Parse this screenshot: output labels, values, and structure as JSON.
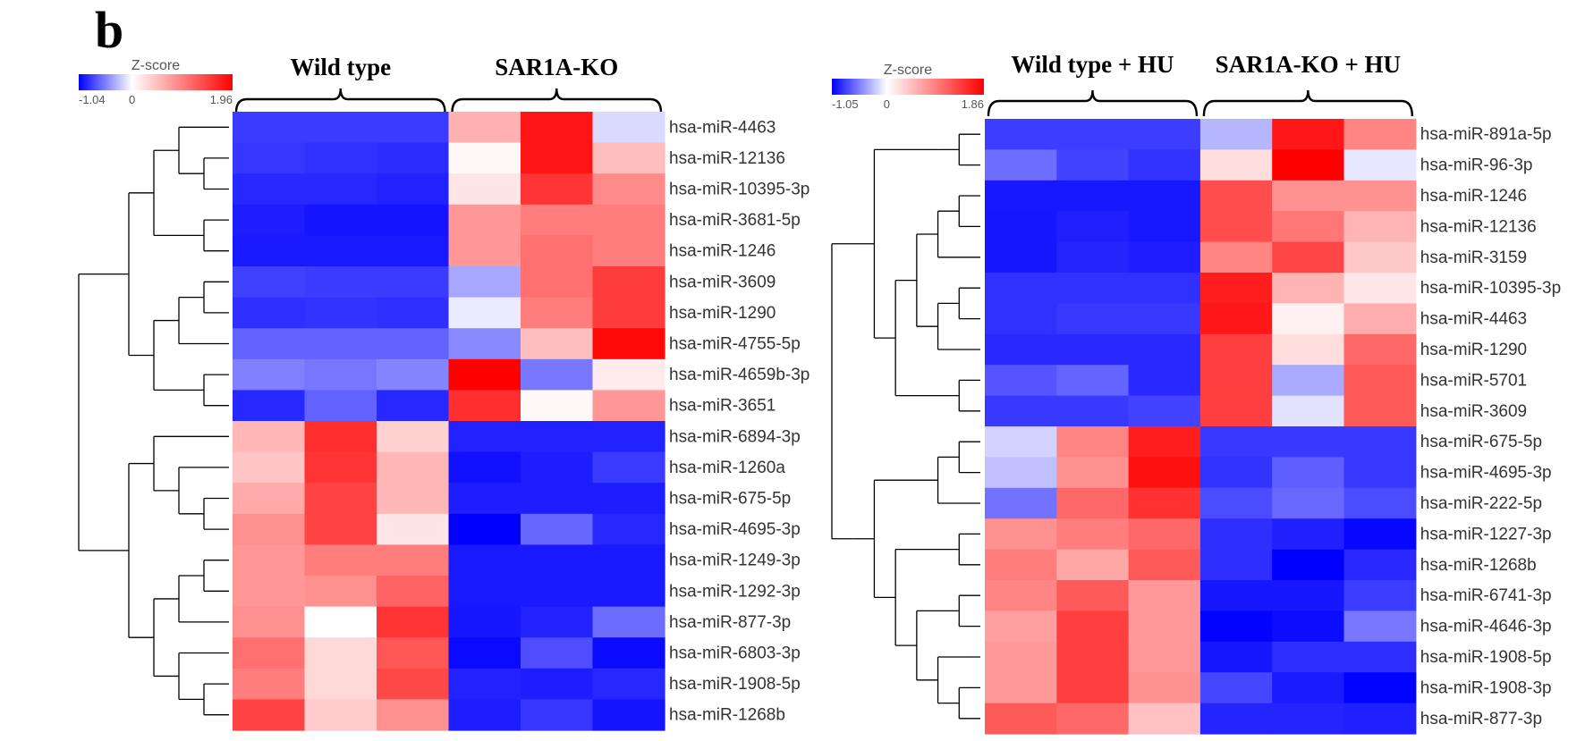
{
  "panel_label": "b",
  "chart_data": [
    {
      "type": "heatmap",
      "color_scale": {
        "title": "Z-score",
        "min": -1.04,
        "mid": 0,
        "max": 1.96,
        "min_label": "-1.04",
        "mid_label": "0",
        "max_label": "1.96",
        "low_color": "#0000ff",
        "mid_color": "#ffffff",
        "high_color": "#ff0000"
      },
      "groups": [
        "Wild type",
        "SAR1A-KO"
      ],
      "columns_per_group": 3,
      "rows": [
        "hsa-miR-4463",
        "hsa-miR-12136",
        "hsa-miR-10395-3p",
        "hsa-miR-3681-5p",
        "hsa-miR-1246",
        "hsa-miR-3609",
        "hsa-miR-1290",
        "hsa-miR-4755-5p",
        "hsa-miR-4659b-3p",
        "hsa-miR-3651",
        "hsa-miR-6894-3p",
        "hsa-miR-1260a",
        "hsa-miR-675-5p",
        "hsa-miR-4695-3p",
        "hsa-miR-1249-3p",
        "hsa-miR-1292-3p",
        "hsa-miR-877-3p",
        "hsa-miR-6803-3p",
        "hsa-miR-1908-5p",
        "hsa-miR-1268b"
      ],
      "values": [
        [
          -0.8,
          -0.8,
          -0.8,
          0.6,
          1.8,
          -0.15
        ],
        [
          -0.82,
          -0.84,
          -0.86,
          0.05,
          1.8,
          0.5
        ],
        [
          -0.88,
          -0.88,
          -0.9,
          0.2,
          1.55,
          0.9
        ],
        [
          -0.92,
          -0.96,
          -0.96,
          0.8,
          1.0,
          1.0
        ],
        [
          -0.94,
          -0.94,
          -0.94,
          0.8,
          1.1,
          1.0
        ],
        [
          -0.78,
          -0.8,
          -0.8,
          -0.36,
          1.1,
          1.5
        ],
        [
          -0.85,
          -0.83,
          -0.85,
          -0.08,
          1.0,
          1.5
        ],
        [
          -0.64,
          -0.64,
          -0.64,
          -0.48,
          0.5,
          1.9
        ],
        [
          -0.52,
          -0.56,
          -0.5,
          1.96,
          -0.55,
          0.15
        ],
        [
          -0.88,
          -0.64,
          -0.88,
          1.6,
          0.05,
          0.8
        ],
        [
          0.55,
          1.6,
          0.35,
          -0.9,
          -0.9,
          -0.9
        ],
        [
          0.45,
          1.55,
          0.55,
          -0.97,
          -0.92,
          -0.8
        ],
        [
          0.65,
          1.45,
          0.55,
          -0.92,
          -0.92,
          -0.92
        ],
        [
          0.85,
          1.45,
          0.2,
          -1.04,
          -0.62,
          -0.88
        ],
        [
          0.8,
          1.0,
          1.0,
          -0.94,
          -0.94,
          -0.94
        ],
        [
          0.8,
          0.85,
          1.2,
          -0.94,
          -0.94,
          -0.94
        ],
        [
          0.85,
          0.0,
          1.55,
          -0.95,
          -0.9,
          -0.6
        ],
        [
          1.1,
          0.3,
          1.3,
          -1.0,
          -0.72,
          -1.0
        ],
        [
          1.0,
          0.3,
          1.4,
          -0.9,
          -0.92,
          -0.88
        ],
        [
          1.45,
          0.4,
          0.85,
          -0.92,
          -0.82,
          -0.96
        ]
      ],
      "dendrogram": {
        "type": "row",
        "tree": [
          [
            [
              [
                [
                  0,
                  [
                    1,
                    2
                  ]
                ],
                [
                  3,
                  4
                ]
              ],
              [
                [
                  [
                    5,
                    6
                  ],
                  7
                ],
                [
                  8,
                  9
                ]
              ]
            ]
          ],
          [
            [
              [
                10,
                [
                  11,
                  [
                    12,
                    13
                  ]
                ]
              ],
              [
                [
                  [
                    14,
                    15
                  ],
                  16
                ],
                [
                  17,
                  [
                    18,
                    19
                  ]
                ]
              ]
            ]
          ]
        ]
      }
    },
    {
      "type": "heatmap",
      "color_scale": {
        "title": "Z-score",
        "min": -1.05,
        "mid": 0,
        "max": 1.86,
        "min_label": "-1.05",
        "mid_label": "0",
        "max_label": "1.86",
        "low_color": "#0000ff",
        "mid_color": "#ffffff",
        "high_color": "#ff0000"
      },
      "groups": [
        "Wild type + HU",
        "SAR1A-KO + HU"
      ],
      "columns_per_group": 3,
      "rows": [
        "hsa-miR-891a-5p",
        "hsa-miR-96-3p",
        "hsa-miR-1246",
        "hsa-miR-12136",
        "hsa-miR-3159",
        "hsa-miR-10395-3p",
        "hsa-miR-4463",
        "hsa-miR-1290",
        "hsa-miR-5701",
        "hsa-miR-3609",
        "hsa-miR-675-5p",
        "hsa-miR-4695-3p",
        "hsa-miR-222-5p",
        "hsa-miR-1227-3p",
        "hsa-miR-1268b",
        "hsa-miR-6741-3p",
        "hsa-miR-4646-3p",
        "hsa-miR-1908-5p",
        "hsa-miR-1908-3p",
        "hsa-miR-877-3p"
      ],
      "values": [
        [
          -0.8,
          -0.8,
          -0.8,
          -0.3,
          1.7,
          0.9
        ],
        [
          -0.6,
          -0.78,
          -0.84,
          0.25,
          1.86,
          -0.1
        ],
        [
          -0.95,
          -0.95,
          -0.95,
          1.3,
          0.8,
          0.8
        ],
        [
          -0.96,
          -0.92,
          -0.95,
          1.3,
          1.0,
          0.55
        ],
        [
          -0.96,
          -0.9,
          -0.93,
          0.9,
          1.35,
          0.4
        ],
        [
          -0.85,
          -0.85,
          -0.85,
          1.65,
          0.55,
          0.18
        ],
        [
          -0.85,
          -0.82,
          -0.82,
          1.7,
          0.1,
          0.6
        ],
        [
          -0.88,
          -0.88,
          -0.88,
          1.4,
          0.25,
          1.1
        ],
        [
          -0.7,
          -0.64,
          -0.88,
          1.4,
          -0.35,
          1.2
        ],
        [
          -0.82,
          -0.82,
          -0.78,
          1.4,
          -0.12,
          1.2
        ],
        [
          -0.18,
          0.9,
          1.65,
          -0.82,
          -0.82,
          -0.82
        ],
        [
          -0.26,
          0.8,
          1.75,
          -0.84,
          -0.66,
          -0.82
        ],
        [
          -0.58,
          1.1,
          1.5,
          -0.74,
          -0.62,
          -0.74
        ],
        [
          0.8,
          0.95,
          1.1,
          -0.86,
          -0.92,
          -1.02
        ],
        [
          0.95,
          0.65,
          1.2,
          -0.86,
          -1.05,
          -0.88
        ],
        [
          0.9,
          1.2,
          0.75,
          -0.96,
          -0.96,
          -0.8
        ],
        [
          0.7,
          1.4,
          0.75,
          -1.04,
          -1.0,
          -0.56
        ],
        [
          0.75,
          1.4,
          0.75,
          -0.96,
          -0.86,
          -0.86
        ],
        [
          0.75,
          1.4,
          0.8,
          -0.76,
          -0.94,
          -1.04
        ],
        [
          1.2,
          1.1,
          0.45,
          -0.9,
          -0.9,
          -0.92
        ]
      ],
      "dendrogram": {
        "type": "row",
        "tree": [
          [
            [
              [
                0,
                1
              ]
            ],
            [
              [
                [
                  [
                    2,
                    3
                  ],
                  4
                ],
                [
                  [
                    5,
                    6
                  ],
                  7
                ]
              ],
              [
                8,
                9
              ]
            ]
          ],
          [
            [
              [
                [
                  10,
                  11
                ],
                12
              ],
              [
                [
                  13,
                  14
                ],
                [
                  [
                    15,
                    16
                  ],
                  [
                    17,
                    [
                      18,
                      19
                    ]
                  ]
                ]
              ]
            ]
          ]
        ]
      }
    }
  ]
}
